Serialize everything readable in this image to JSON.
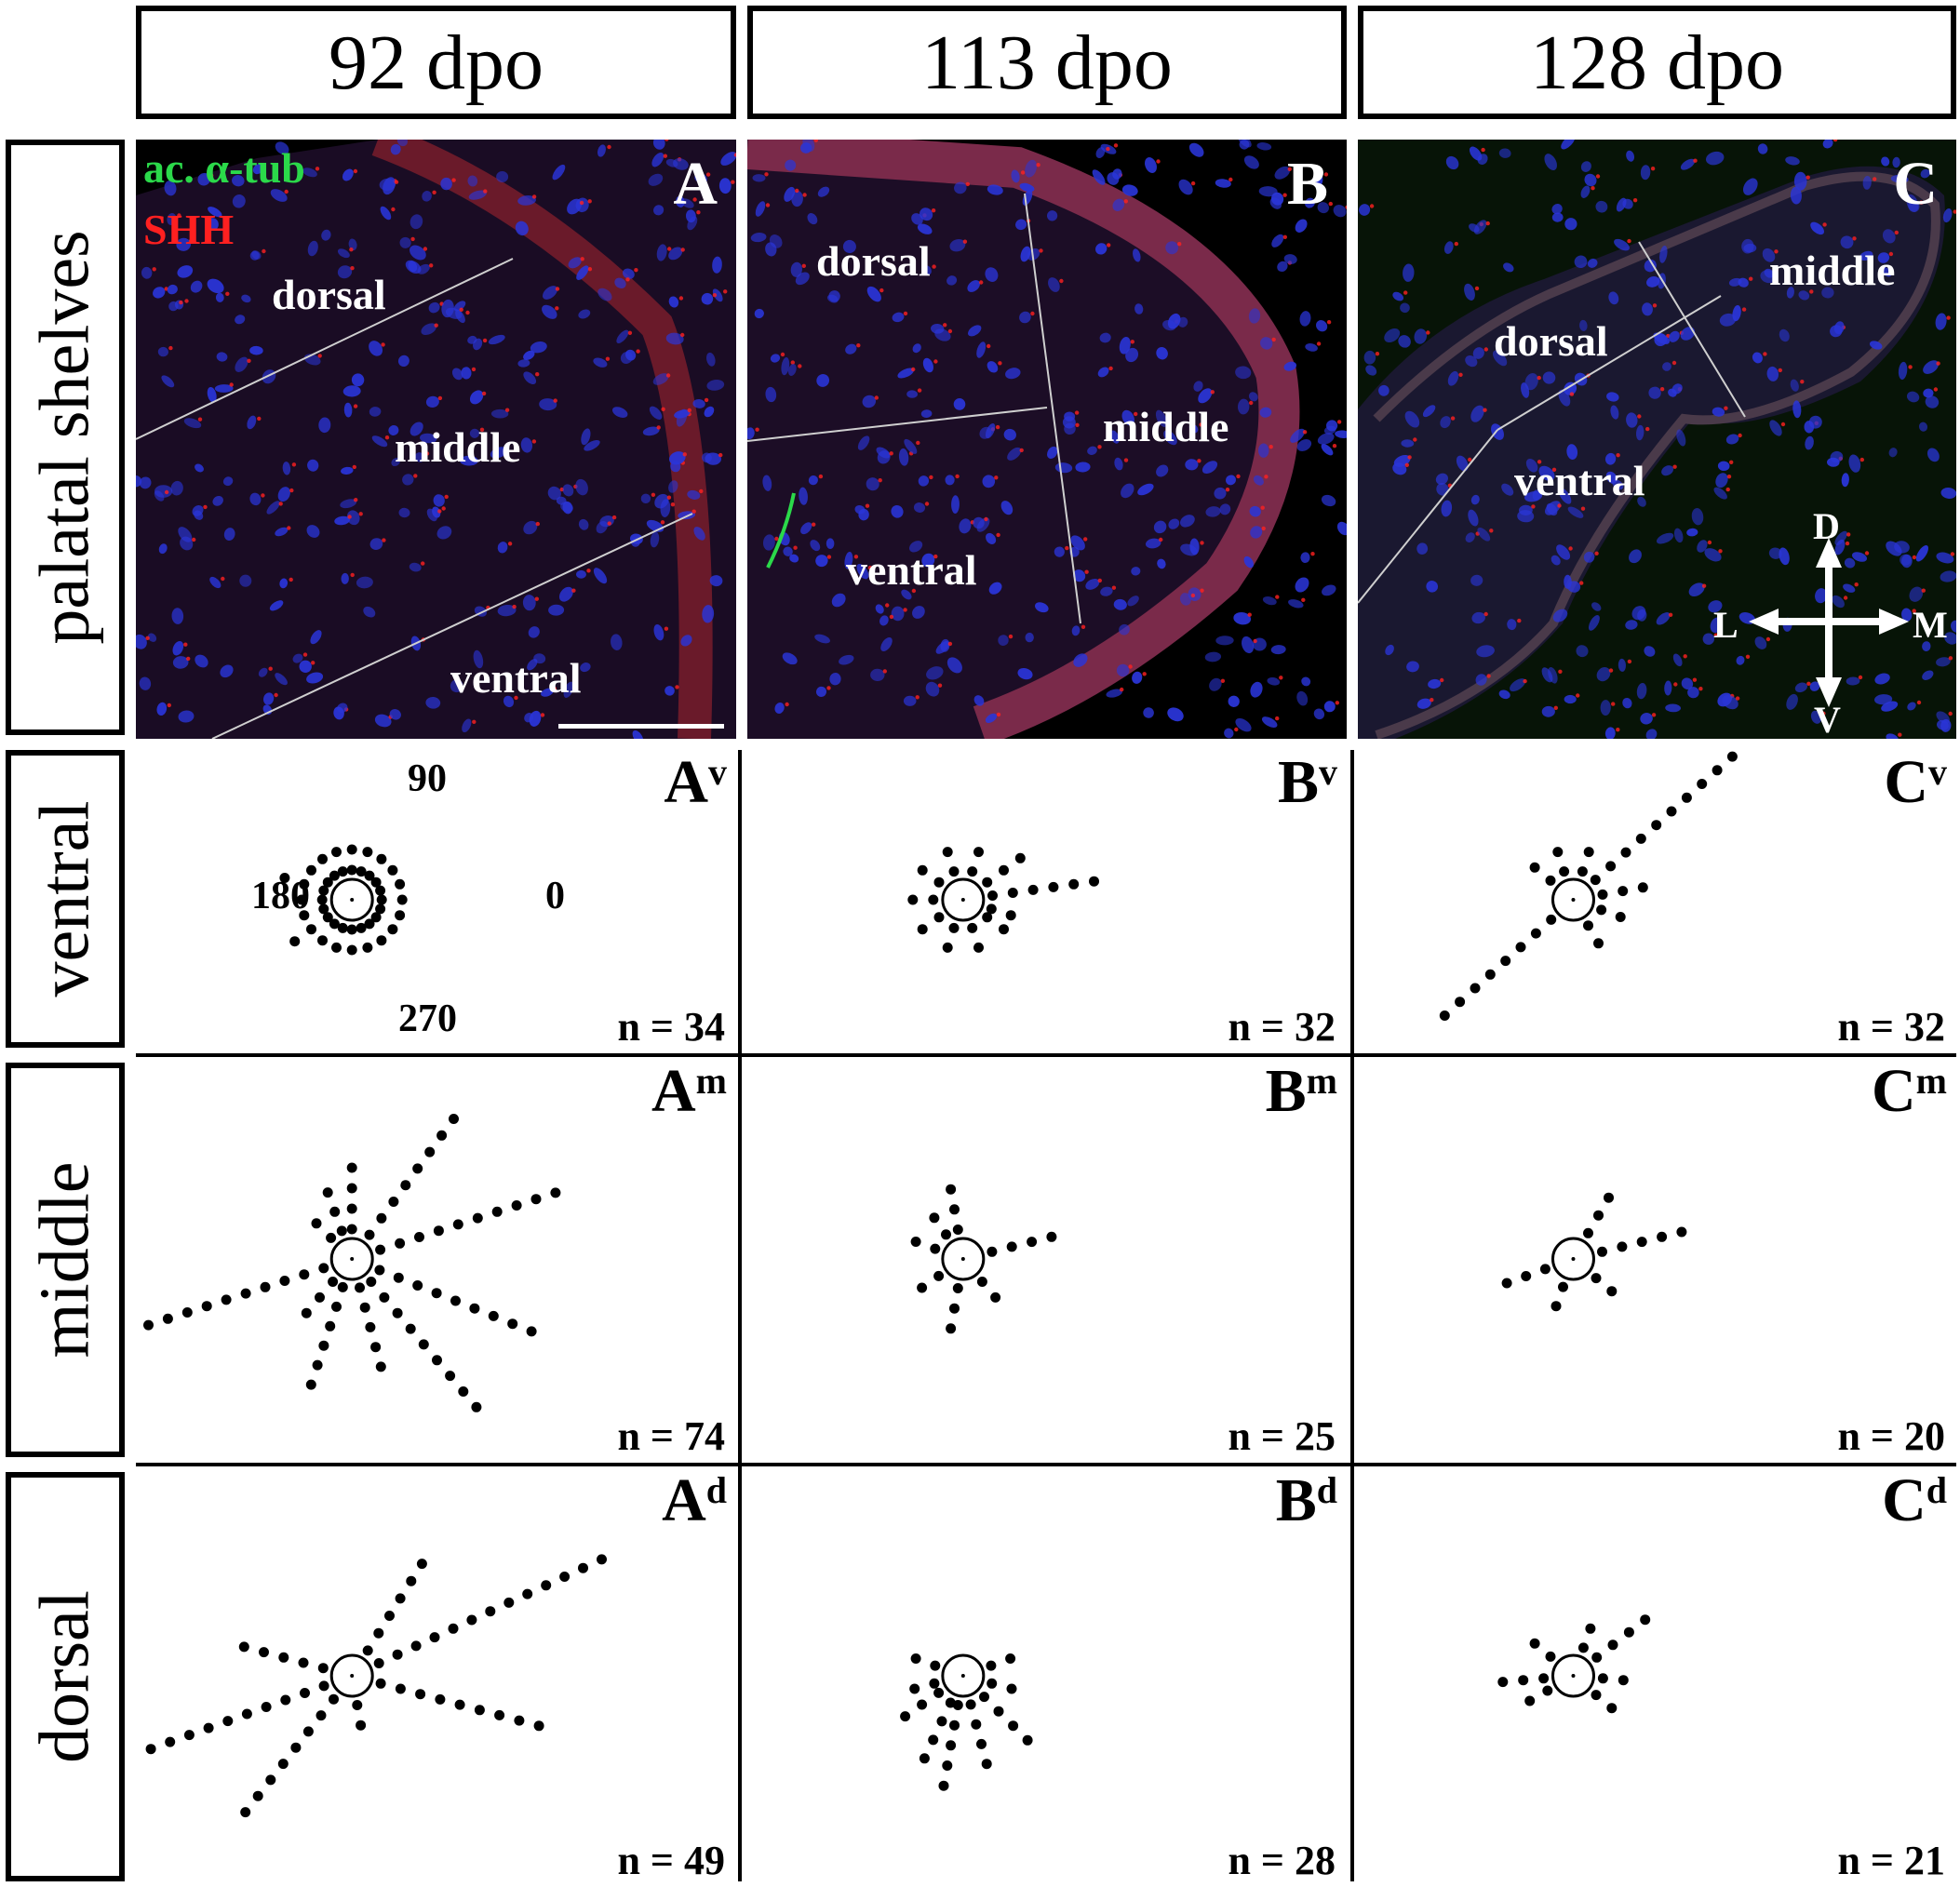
{
  "columns": [
    "92 dpo",
    "113 dpo",
    "128 dpo"
  ],
  "rows": [
    "palatal shelves",
    "ventral",
    "middle",
    "dorsal"
  ],
  "legend": {
    "green": "ac. α-tub",
    "red": "SHH"
  },
  "colors": {
    "green": "#2bd94a",
    "red": "#ff2020",
    "nuclei": "#2a35d8"
  },
  "micrographs": [
    {
      "letter": "A",
      "regions": [
        "dorsal",
        "middle",
        "ventral"
      ]
    },
    {
      "letter": "B",
      "regions": [
        "dorsal",
        "middle",
        "ventral"
      ]
    },
    {
      "letter": "C",
      "regions": [
        "middle",
        "dorsal",
        "ventral"
      ]
    }
  ],
  "compass": {
    "up": "D",
    "down": "V",
    "left": "L",
    "right": "M"
  },
  "angle_labels": {
    "deg90": "90",
    "deg180": "180",
    "deg0": "0",
    "deg270": "270"
  },
  "rose_panels": [
    {
      "letter": "A",
      "sup": "v",
      "n_label": "n = 34"
    },
    {
      "letter": "B",
      "sup": "v",
      "n_label": "n = 32"
    },
    {
      "letter": "C",
      "sup": "v",
      "n_label": "n = 32"
    },
    {
      "letter": "A",
      "sup": "m",
      "n_label": "n = 74"
    },
    {
      "letter": "B",
      "sup": "m",
      "n_label": "n = 25"
    },
    {
      "letter": "C",
      "sup": "m",
      "n_label": "n = 20"
    },
    {
      "letter": "A",
      "sup": "d",
      "n_label": "n = 49"
    },
    {
      "letter": "B",
      "sup": "d",
      "n_label": "n = 28"
    },
    {
      "letter": "C",
      "sup": "d",
      "n_label": "n = 21"
    }
  ],
  "chart_data": {
    "type": "rose",
    "direction_unit": "degrees",
    "panels": [
      {
        "name": "Av",
        "rays": [
          [
            0,
            2
          ],
          [
            18,
            2
          ],
          [
            36,
            2
          ],
          [
            54,
            2
          ],
          [
            72,
            2
          ],
          [
            90,
            2
          ],
          [
            108,
            2
          ],
          [
            126,
            2
          ],
          [
            144,
            2
          ],
          [
            162,
            3
          ],
          [
            180,
            2
          ],
          [
            198,
            2
          ],
          [
            216,
            3
          ],
          [
            234,
            2
          ],
          [
            252,
            2
          ],
          [
            270,
            2
          ],
          [
            288,
            2
          ],
          [
            306,
            2
          ],
          [
            324,
            2
          ],
          [
            342,
            2
          ]
        ]
      },
      {
        "name": "Bv",
        "rays": [
          [
            8,
            6
          ],
          [
            36,
            3
          ],
          [
            72,
            2
          ],
          [
            108,
            2
          ],
          [
            144,
            2
          ],
          [
            180,
            2
          ],
          [
            216,
            2
          ],
          [
            252,
            2
          ],
          [
            288,
            2
          ],
          [
            324,
            2
          ],
          [
            342,
            2
          ]
        ]
      },
      {
        "name": "Cv",
        "rays": [
          [
            42,
            11
          ],
          [
            72,
            2
          ],
          [
            108,
            2
          ],
          [
            140,
            2
          ],
          [
            222,
            8
          ],
          [
            300,
            2
          ],
          [
            340,
            2
          ],
          [
            10,
            3
          ]
        ]
      },
      {
        "name": "Am",
        "rays": [
          [
            18,
            10
          ],
          [
            54,
            8
          ],
          [
            90,
            4
          ],
          [
            110,
            3
          ],
          [
            135,
            2
          ],
          [
            198,
            13
          ],
          [
            230,
            3
          ],
          [
            252,
            6
          ],
          [
            285,
            5
          ],
          [
            310,
            9
          ],
          [
            338,
            9
          ]
        ]
      },
      {
        "name": "Bm",
        "rays": [
          [
            14,
            4
          ],
          [
            100,
            3
          ],
          [
            125,
            2
          ],
          [
            160,
            2
          ],
          [
            215,
            2
          ],
          [
            260,
            3
          ],
          [
            310,
            2
          ]
        ]
      },
      {
        "name": "Cm",
        "rays": [
          [
            14,
            5
          ],
          [
            60,
            3
          ],
          [
            200,
            3
          ],
          [
            250,
            2
          ],
          [
            320,
            2
          ]
        ]
      },
      {
        "name": "Ad",
        "rays": [
          [
            25,
            13
          ],
          [
            58,
            6
          ],
          [
            165,
            5
          ],
          [
            200,
            10
          ],
          [
            232,
            8
          ],
          [
            280,
            2
          ],
          [
            345,
            9
          ]
        ]
      },
      {
        "name": "Bd",
        "rays": [
          [
            160,
            2
          ],
          [
            195,
            2
          ],
          [
            215,
            3
          ],
          [
            245,
            4
          ],
          [
            260,
            5
          ],
          [
            285,
            4
          ],
          [
            315,
            4
          ],
          [
            345,
            2
          ],
          [
            20,
            2
          ]
        ]
      },
      {
        "name": "Cd",
        "rays": [
          [
            38,
            4
          ],
          [
            140,
            2
          ],
          [
            185,
            3
          ],
          [
            210,
            2
          ],
          [
            320,
            2
          ],
          [
            355,
            2
          ],
          [
            70,
            2
          ]
        ]
      }
    ]
  }
}
